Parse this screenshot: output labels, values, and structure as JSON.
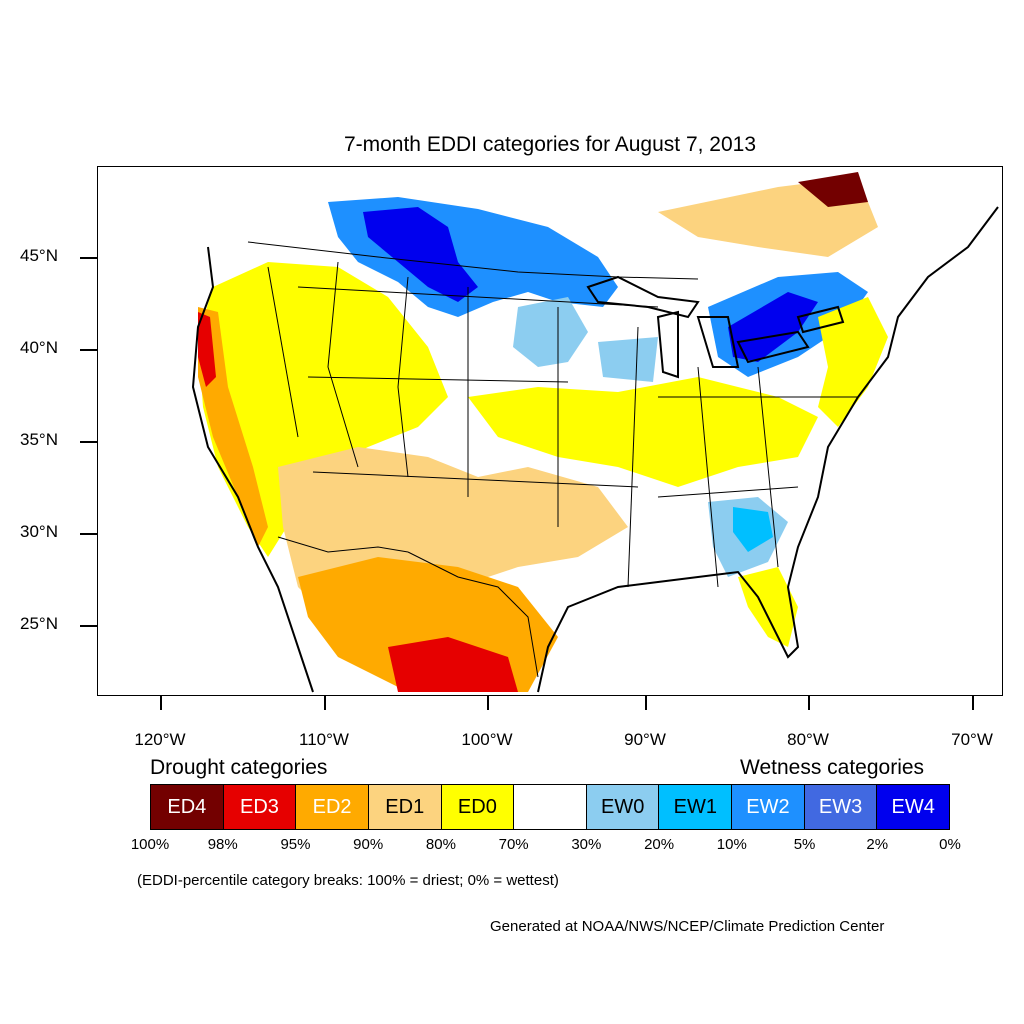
{
  "title": "7-month EDDI categories for August 7, 2013",
  "latitude_labels": [
    "45°N",
    "40°N",
    "35°N",
    "30°N",
    "25°N"
  ],
  "longitude_labels": [
    "120°W",
    "110°W",
    "100°W",
    "90°W",
    "80°W",
    "70°W"
  ],
  "legend": {
    "drought_title": "Drought categories",
    "wetness_title": "Wetness categories",
    "categories": [
      {
        "label": "ED4",
        "color": "#730000",
        "text_color": "#ffffff"
      },
      {
        "label": "ED3",
        "color": "#e60000",
        "text_color": "#ffffff"
      },
      {
        "label": "ED2",
        "color": "#ffaa00",
        "text_color": "#ffffff"
      },
      {
        "label": "ED1",
        "color": "#fcd37f",
        "text_color": "#000000"
      },
      {
        "label": "ED0",
        "color": "#ffff00",
        "text_color": "#000000"
      },
      {
        "label": "",
        "color": "#ffffff",
        "text_color": "#000000"
      },
      {
        "label": "EW0",
        "color": "#8ccdf0",
        "text_color": "#000000"
      },
      {
        "label": "EW1",
        "color": "#00bfff",
        "text_color": "#000000"
      },
      {
        "label": "EW2",
        "color": "#1e90ff",
        "text_color": "#ffffff"
      },
      {
        "label": "EW3",
        "color": "#4169e1",
        "text_color": "#ffffff"
      },
      {
        "label": "EW4",
        "color": "#0000ee",
        "text_color": "#ffffff"
      }
    ],
    "breaks": [
      "100%",
      "98%",
      "95%",
      "90%",
      "80%",
      "70%",
      "30%",
      "20%",
      "10%",
      "5%",
      "2%",
      "0%"
    ]
  },
  "breaks_note": "(EDDI-percentile category breaks: 100% = driest; 0% = wettest)",
  "credit": "Generated at NOAA/NWS/NCEP/Climate Prediction Center"
}
